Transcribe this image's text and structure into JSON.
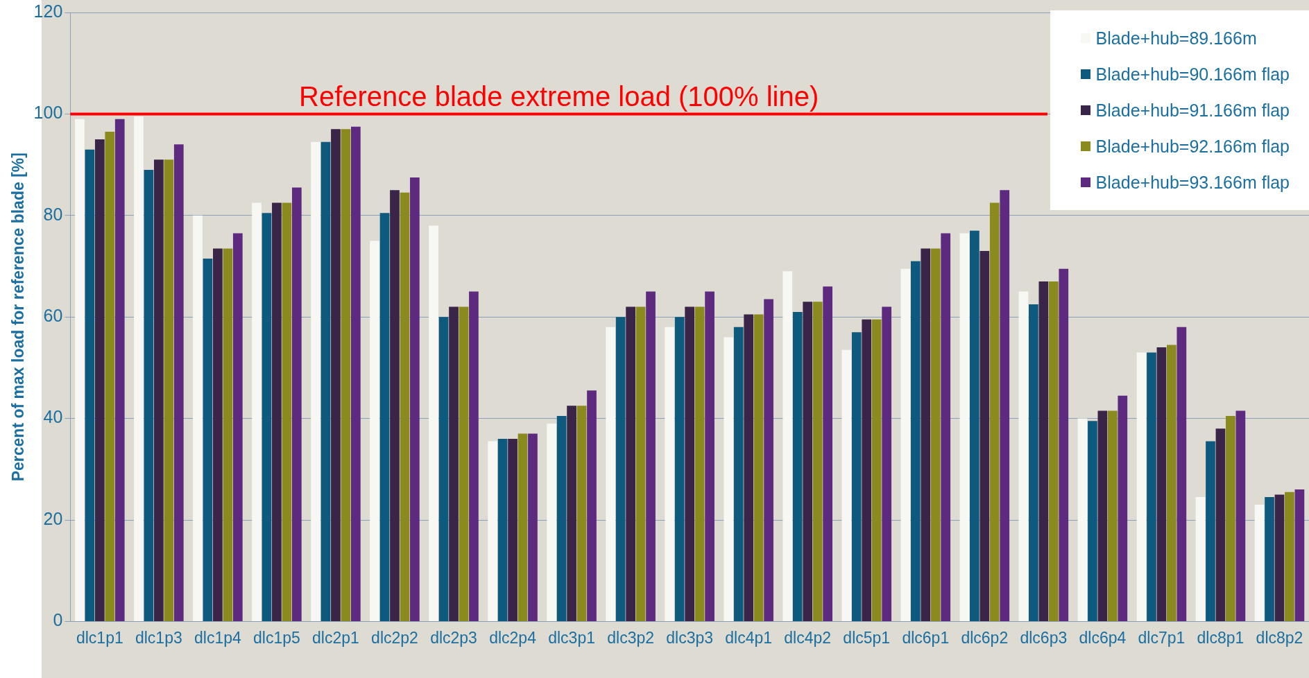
{
  "chart_data": {
    "type": "bar",
    "ylabel": "Percent of max load for reference blade [%]",
    "categories": [
      "dlc1p1",
      "dlc1p3",
      "dlc1p4",
      "dlc1p5",
      "dlc2p1",
      "dlc2p2",
      "dlc2p3",
      "dlc2p4",
      "dlc3p1",
      "dlc3p2",
      "dlc3p3",
      "dlc4p1",
      "dlc4p2",
      "dlc5p1",
      "dlc6p1",
      "dlc6p2",
      "dlc6p3",
      "dlc6p4",
      "dlc7p1",
      "dlc8p1",
      "dlc8p2"
    ],
    "series": [
      {
        "name": "Blade+hub=89.166m",
        "color": "#f7f7f3",
        "values": [
          99,
          99.5,
          80,
          82.5,
          94.5,
          75,
          78,
          35.5,
          39,
          58,
          58,
          56,
          69,
          53.5,
          69.5,
          76.5,
          65,
          40,
          53,
          24.5,
          23
        ]
      },
      {
        "name": "Blade+hub=90.166m flap",
        "color": "#0e5a7e",
        "values": [
          93,
          89,
          71.5,
          80.5,
          94.5,
          80.5,
          60,
          36,
          40.5,
          60,
          60,
          58,
          61,
          57,
          71,
          77,
          62.5,
          39.5,
          53,
          35.5,
          24.5
        ]
      },
      {
        "name": "Blade+hub=91.166m flap",
        "color": "#3a2448",
        "values": [
          95,
          91,
          73.5,
          82.5,
          97,
          85,
          62,
          36,
          42.5,
          62,
          62,
          60.5,
          63,
          59.5,
          73.5,
          73,
          67,
          41.5,
          54,
          38,
          25
        ]
      },
      {
        "name": "Blade+hub=92.166m flap",
        "color": "#8a8a1e",
        "values": [
          96.5,
          91,
          73.5,
          82.5,
          97,
          84.5,
          62,
          37,
          42.5,
          62,
          62,
          60.5,
          63,
          59.5,
          73.5,
          82.5,
          67,
          41.5,
          54.5,
          40.5,
          25.5
        ]
      },
      {
        "name": "Blade+hub=93.166m flap",
        "color": "#5e2a80",
        "values": [
          99,
          94,
          76.5,
          85.5,
          97.5,
          87.5,
          65,
          37,
          45.5,
          65,
          65,
          63.5,
          66,
          62,
          76.5,
          85,
          69.5,
          44.5,
          58,
          41.5,
          26
        ]
      }
    ],
    "ylim": [
      0,
      120
    ],
    "yticks": [
      0,
      20,
      40,
      60,
      80,
      100,
      120
    ],
    "grid": "y",
    "legend": "top right",
    "ref_lines": [
      {
        "axis": "y",
        "value": 100,
        "label": "Reference blade extreme load (100% line)",
        "color": "#ff0000"
      }
    ]
  }
}
